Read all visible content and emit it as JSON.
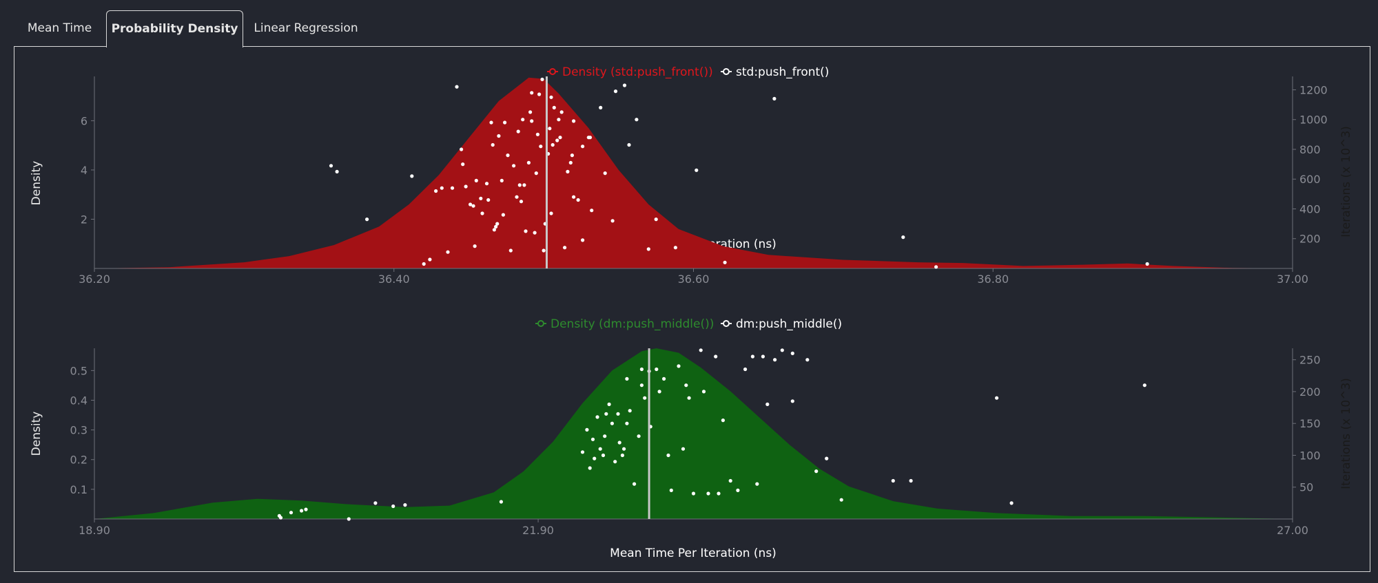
{
  "tabs": [
    {
      "label": "Mean Time"
    },
    {
      "label": "Probability Density"
    },
    {
      "label": "Linear Regression"
    }
  ],
  "colors": {
    "background": "#23262f",
    "red_density": "#a31115",
    "red_legend": "#e0161c",
    "green_density": "#0f6212",
    "green_legend": "#2e8b2e",
    "point": "#ffffff",
    "mean_line": "#c8c8c8"
  },
  "chart_data": [
    {
      "type": "area",
      "legend": [
        "Density (std:push_front())",
        "std:push_front()"
      ],
      "xlabel": "Mean Time Per Iteration (ns)",
      "ylabel": "Density",
      "y2label": "Iterations (x 10^3)",
      "xlim": [
        36.2,
        37.0
      ],
      "ylim": [
        0,
        7.8
      ],
      "y2lim": [
        0,
        1290
      ],
      "x_ticks": [
        "36.20",
        "36.40",
        "36.60",
        "36.80",
        "37.00"
      ],
      "y_ticks": [
        2,
        4,
        6
      ],
      "y2_ticks": [
        200,
        400,
        600,
        800,
        1000,
        1200
      ],
      "mean": 36.502,
      "density": {
        "x": [
          36.2,
          36.25,
          36.3,
          36.33,
          36.36,
          36.39,
          36.41,
          36.43,
          36.45,
          36.47,
          36.49,
          36.5,
          36.51,
          36.53,
          36.55,
          36.57,
          36.59,
          36.62,
          36.65,
          36.7,
          36.75,
          36.78,
          36.82,
          36.86,
          36.89,
          36.92,
          36.96,
          37.0
        ],
        "y": [
          0.0,
          0.05,
          0.25,
          0.5,
          0.95,
          1.7,
          2.6,
          3.8,
          5.3,
          6.8,
          7.75,
          7.7,
          7.1,
          5.7,
          4.0,
          2.6,
          1.6,
          0.9,
          0.55,
          0.35,
          0.25,
          0.22,
          0.1,
          0.15,
          0.2,
          0.1,
          0.02,
          0.0
        ]
      },
      "points": {
        "x": [
          36.358,
          36.362,
          36.382,
          36.412,
          36.42,
          36.424,
          36.428,
          36.432,
          36.436,
          36.442,
          36.446,
          36.454,
          36.458,
          36.462,
          36.466,
          36.47,
          36.474,
          36.478,
          36.48,
          36.484,
          36.488,
          36.492,
          36.494,
          36.496,
          36.5,
          36.504,
          36.506,
          36.51,
          36.512,
          36.514,
          36.52,
          36.526,
          36.532,
          36.538,
          36.546,
          36.554,
          36.562,
          36.575,
          36.588,
          36.602,
          36.621,
          36.654,
          36.74,
          36.762,
          36.903,
          36.439,
          36.451,
          36.445,
          36.448,
          36.459,
          36.463,
          36.467,
          36.472,
          36.476,
          36.483,
          36.487,
          36.491,
          36.497,
          36.501,
          36.507,
          36.516,
          36.519,
          36.523,
          36.526,
          36.53,
          36.455,
          36.465,
          36.486,
          36.495,
          36.503,
          36.509,
          36.518,
          36.531,
          36.541,
          36.548,
          36.557,
          36.57,
          36.468,
          36.473,
          36.485,
          36.492,
          36.499,
          36.505,
          36.511,
          36.52,
          36.453,
          36.469,
          36.482,
          36.49,
          36.498,
          36.505
        ],
        "y": [
          690,
          650,
          330,
          620,
          30,
          60,
          520,
          540,
          110,
          1220,
          700,
          150,
          470,
          570,
          830,
          890,
          980,
          120,
          690,
          560,
          250,
          990,
          240,
          900,
          120,
          940,
          830,
          1000,
          1050,
          140,
          990,
          190,
          390,
          1080,
          320,
          1230,
          1000,
          330,
          140,
          660,
          40,
          1140,
          210,
          10,
          30,
          540,
          430,
          800,
          550,
          370,
          460,
          260,
          590,
          760,
          920,
          560,
          1050,
          1170,
          300,
          1080,
          650,
          760,
          460,
          820,
          880,
          590,
          980,
          1000,
          640,
          770,
          860,
          710,
          880,
          640,
          1190,
          830,
          130,
          280,
          360,
          450,
          1180,
          1270,
          370,
          880,
          480,
          420,
          300,
          480,
          710,
          820,
          1150
        ]
      }
    },
    {
      "type": "area",
      "legend": [
        "Density (dm:push_middle())",
        "dm:push_middle()"
      ],
      "xlabel": "Mean Time Per Iteration (ns)",
      "ylabel": "Density",
      "y2label": "Iterations (x 10^3)",
      "xlim": [
        18.9,
        27.0
      ],
      "ylim": [
        0,
        0.575
      ],
      "y2lim": [
        0,
        268
      ],
      "x_ticks": [
        "18.90",
        "21.90",
        "27.00"
      ],
      "y_ticks": [
        0.1,
        0.2,
        0.3,
        0.4,
        0.5
      ],
      "y2_ticks": [
        50,
        100,
        150,
        200,
        250
      ],
      "mean": 22.65,
      "density": {
        "x": [
          18.9,
          19.3,
          19.7,
          20.0,
          20.3,
          20.6,
          21.0,
          21.3,
          21.6,
          21.8,
          22.0,
          22.2,
          22.4,
          22.6,
          22.7,
          22.85,
          23.0,
          23.2,
          23.4,
          23.6,
          23.8,
          24.0,
          24.3,
          24.6,
          25.0,
          25.5,
          26.0,
          26.5,
          27.0
        ],
        "y": [
          0.0,
          0.02,
          0.055,
          0.068,
          0.062,
          0.05,
          0.04,
          0.045,
          0.09,
          0.16,
          0.26,
          0.39,
          0.5,
          0.565,
          0.575,
          0.56,
          0.51,
          0.43,
          0.34,
          0.25,
          0.17,
          0.11,
          0.06,
          0.035,
          0.02,
          0.01,
          0.01,
          0.005,
          0.0
        ]
      },
      "points": {
        "x": [
          20.15,
          20.16,
          20.23,
          20.3,
          20.33,
          20.62,
          20.8,
          20.92,
          21.0,
          21.65,
          22.2,
          22.23,
          22.28,
          22.3,
          22.35,
          22.38,
          22.44,
          22.47,
          22.5,
          22.55,
          22.6,
          22.62,
          22.7,
          22.78,
          22.8,
          22.9,
          22.95,
          23.0,
          23.1,
          23.2,
          23.3,
          23.35,
          23.42,
          23.55,
          23.72,
          23.85,
          24.3,
          24.42,
          25.0,
          25.1,
          26.0,
          22.25,
          22.32,
          22.4,
          22.45,
          22.52,
          22.58,
          22.65,
          22.72,
          22.85,
          22.92,
          23.05,
          23.15,
          23.25,
          23.45,
          23.62,
          23.78,
          23.95,
          22.36,
          22.42,
          22.5,
          22.66,
          22.75,
          22.88,
          23.02,
          23.12,
          23.38,
          23.5,
          23.62,
          22.27,
          22.34,
          22.48,
          22.6
        ],
        "y": [
          5,
          2,
          10,
          13,
          15,
          0,
          25,
          20,
          22,
          27,
          105,
          140,
          95,
          160,
          130,
          180,
          165,
          100,
          220,
          55,
          210,
          190,
          235,
          100,
          45,
          210,
          40,
          265,
          255,
          60,
          235,
          255,
          255,
          265,
          250,
          95,
          60,
          60,
          190,
          25,
          210,
          80,
          110,
          150,
          120,
          170,
          130,
          232,
          200,
          240,
          190,
          40,
          155,
          45,
          180,
          185,
          75,
          30,
          165,
          90,
          150,
          145,
          220,
          110,
          200,
          40,
          55,
          250,
          260,
          125,
          100,
          110,
          235
        ]
      }
    }
  ]
}
